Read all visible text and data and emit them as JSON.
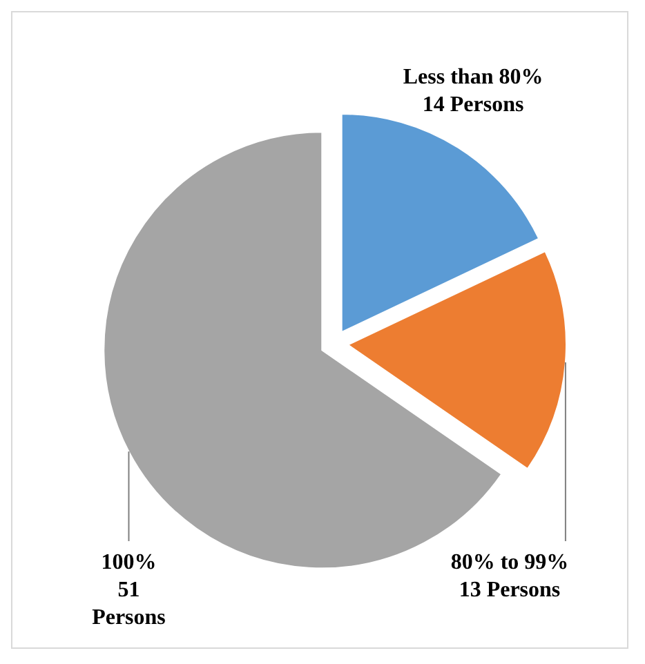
{
  "chart_data": {
    "type": "pie",
    "categories": [
      "Less than 80%",
      "80% to 99%",
      "100%"
    ],
    "values": [
      14,
      13,
      51
    ],
    "value_labels": [
      "14 Persons",
      "13 Persons",
      "51 Persons"
    ],
    "colors": [
      "#5b9bd5",
      "#ed7d31",
      "#a5a5a5"
    ],
    "legend": false
  }
}
